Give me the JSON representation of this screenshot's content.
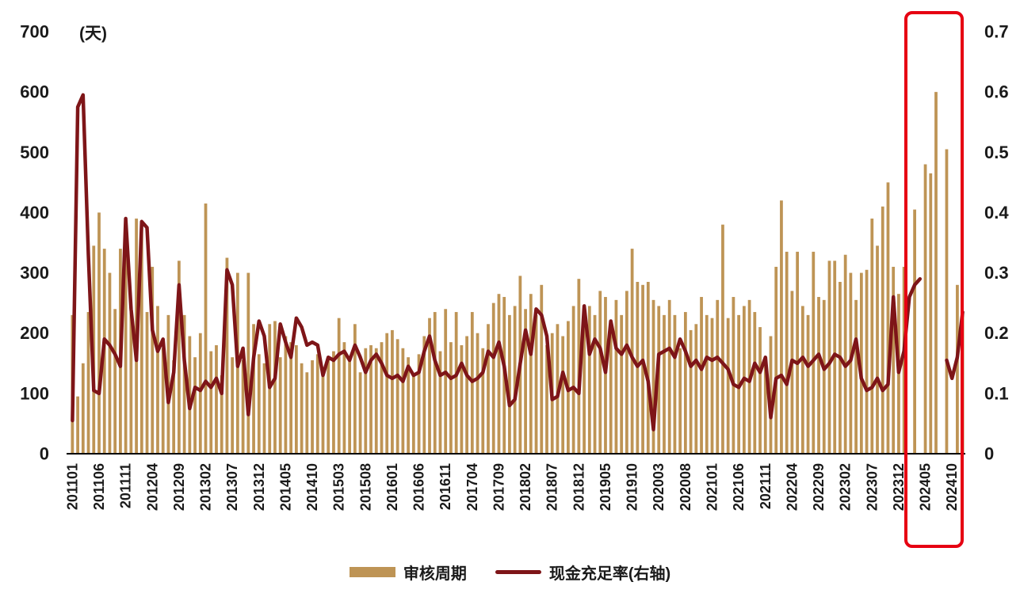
{
  "chart_data": {
    "type": "bar+line",
    "title": "",
    "unit_label": "(天)",
    "left_axis": {
      "label": "天",
      "min": 0,
      "max": 700,
      "ticks": [
        0,
        100,
        200,
        300,
        400,
        500,
        600,
        700
      ]
    },
    "right_axis": {
      "min": 0,
      "max": 0.7,
      "ticks": [
        0,
        0.1,
        0.2,
        0.3,
        0.4,
        0.5,
        0.6,
        0.7
      ]
    },
    "x_tick_every": 5,
    "x_tick_labels": [
      "201101",
      "201106",
      "201111",
      "201204",
      "201209",
      "201302",
      "201307",
      "201312",
      "201405",
      "201410",
      "201503",
      "201508",
      "201601",
      "201606",
      "201611",
      "201704",
      "201709",
      "201802",
      "201807",
      "201812",
      "201905",
      "201910",
      "202003",
      "202008",
      "202101",
      "202106",
      "202111",
      "202204",
      "202209",
      "202302",
      "202307",
      "202312",
      "202405",
      "202410"
    ],
    "series": [
      {
        "name": "审核周期",
        "type": "bar",
        "axis": "left",
        "color": "#be9455",
        "values": [
          230,
          95,
          150,
          235,
          345,
          400,
          340,
          300,
          240,
          340,
          365,
          235,
          390,
          380,
          235,
          310,
          245,
          175,
          230,
          155,
          320,
          230,
          195,
          160,
          200,
          415,
          170,
          180,
          130,
          325,
          160,
          300,
          155,
          300,
          215,
          165,
          150,
          215,
          220,
          160,
          195,
          185,
          180,
          150,
          135,
          155,
          165,
          130,
          160,
          170,
          225,
          185,
          160,
          215,
          135,
          175,
          180,
          175,
          185,
          200,
          205,
          190,
          175,
          160,
          130,
          165,
          195,
          225,
          235,
          170,
          240,
          185,
          235,
          180,
          195,
          235,
          200,
          175,
          215,
          250,
          265,
          260,
          230,
          245,
          295,
          240,
          265,
          230,
          280,
          180,
          200,
          215,
          195,
          220,
          245,
          290,
          225,
          245,
          230,
          270,
          260,
          220,
          255,
          230,
          270,
          340,
          285,
          280,
          285,
          255,
          245,
          230,
          255,
          230,
          175,
          235,
          205,
          215,
          260,
          230,
          225,
          255,
          380,
          225,
          260,
          230,
          245,
          255,
          235,
          210,
          155,
          195,
          310,
          420,
          335,
          270,
          335,
          245,
          230,
          335,
          260,
          255,
          320,
          320,
          285,
          330,
          300,
          255,
          300,
          305,
          390,
          345,
          410,
          450,
          310,
          265,
          310,
          null,
          405,
          null,
          480,
          465,
          600,
          null,
          505,
          null,
          280,
          235
        ]
      },
      {
        "name": "现金充足率(右轴)",
        "type": "line",
        "axis": "right",
        "color": "#7e1518",
        "values": [
          0.055,
          0.575,
          0.595,
          0.33,
          0.105,
          0.1,
          0.19,
          0.18,
          0.165,
          0.145,
          0.39,
          0.24,
          0.155,
          0.385,
          0.375,
          0.205,
          0.17,
          0.19,
          0.085,
          0.135,
          0.28,
          0.155,
          0.075,
          0.11,
          0.105,
          0.12,
          0.11,
          0.125,
          0.1,
          0.305,
          0.28,
          0.145,
          0.175,
          0.065,
          0.16,
          0.22,
          0.195,
          0.11,
          0.125,
          0.215,
          0.185,
          0.16,
          0.225,
          0.21,
          0.18,
          0.185,
          0.18,
          0.13,
          0.16,
          0.155,
          0.165,
          0.17,
          0.155,
          0.18,
          0.16,
          0.135,
          0.155,
          0.165,
          0.15,
          0.13,
          0.125,
          0.13,
          0.12,
          0.145,
          0.13,
          0.135,
          0.17,
          0.195,
          0.155,
          0.13,
          0.135,
          0.125,
          0.13,
          0.15,
          0.13,
          0.12,
          0.125,
          0.135,
          0.17,
          0.16,
          0.185,
          0.145,
          0.08,
          0.09,
          0.15,
          0.205,
          0.165,
          0.24,
          0.23,
          0.195,
          0.09,
          0.095,
          0.135,
          0.105,
          0.11,
          0.1,
          0.245,
          0.165,
          0.19,
          0.175,
          0.135,
          0.22,
          0.175,
          0.165,
          0.18,
          0.16,
          0.145,
          0.155,
          0.12,
          0.04,
          0.165,
          0.17,
          0.175,
          0.16,
          0.19,
          0.17,
          0.145,
          0.155,
          0.14,
          0.16,
          0.155,
          0.16,
          0.15,
          0.14,
          0.115,
          0.11,
          0.125,
          0.12,
          0.15,
          0.135,
          0.16,
          0.06,
          0.125,
          0.13,
          0.115,
          0.155,
          0.15,
          0.16,
          0.145,
          0.155,
          0.165,
          0.14,
          0.15,
          0.165,
          0.16,
          0.145,
          0.155,
          0.19,
          0.125,
          0.105,
          0.11,
          0.125,
          0.105,
          0.115,
          0.26,
          0.135,
          0.17,
          0.26,
          0.28,
          0.29,
          null,
          null,
          null,
          null,
          0.155,
          0.125,
          0.16,
          0.235
        ]
      }
    ],
    "legend_position": "bottom-center",
    "grid": false,
    "highlight_region": {
      "label": "2024-highlight",
      "x_start_index": 157,
      "x_end_index": 167,
      "color": "#e60012"
    }
  }
}
